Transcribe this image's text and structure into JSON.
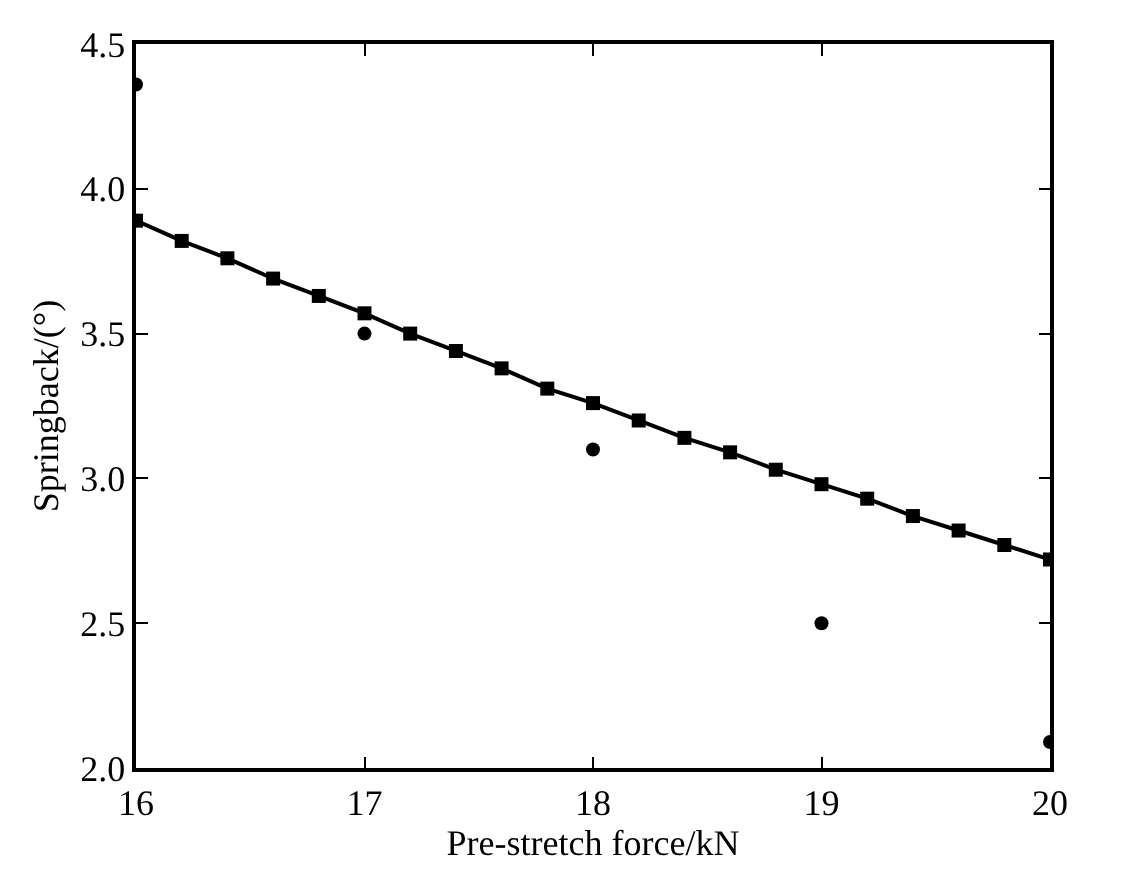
{
  "chart_data": {
    "type": "line",
    "xlabel": "Pre-stretch force/kN",
    "ylabel": "Springback/(°)",
    "xlim": [
      16,
      20
    ],
    "xticks": [
      16,
      17,
      18,
      19,
      20
    ],
    "ylim": [
      2.0,
      4.5
    ],
    "yticks": [
      {
        "value": 2.0,
        "label": "2.0"
      },
      2.5,
      {
        "value": 3.0,
        "label": "3.0"
      },
      3.5,
      {
        "value": 4.0,
        "label": "4.0"
      },
      4.5
    ],
    "series": [
      {
        "marker": "square",
        "line_style": "solid",
        "color": "#000000",
        "x": [
          16,
          16.2,
          16.4,
          16.6,
          16.8,
          17,
          17.2,
          17.4,
          17.6,
          17.8,
          18,
          18.2,
          18.4,
          18.6,
          18.8,
          19,
          19.2,
          19.4,
          19.6,
          19.8,
          20
        ],
        "values": [
          3.89,
          3.82,
          3.76,
          3.69,
          3.63,
          3.57,
          3.5,
          3.44,
          3.38,
          3.31,
          3.26,
          3.2,
          3.14,
          3.09,
          3.03,
          2.98,
          2.93,
          2.87,
          2.82,
          2.77,
          2.72
        ]
      },
      {
        "type": "scatter",
        "marker": "circle",
        "color": "#000000",
        "x": [
          16,
          17,
          18,
          19,
          20
        ],
        "values": [
          4.36,
          3.5,
          3.1,
          2.5,
          2.09
        ]
      }
    ]
  }
}
